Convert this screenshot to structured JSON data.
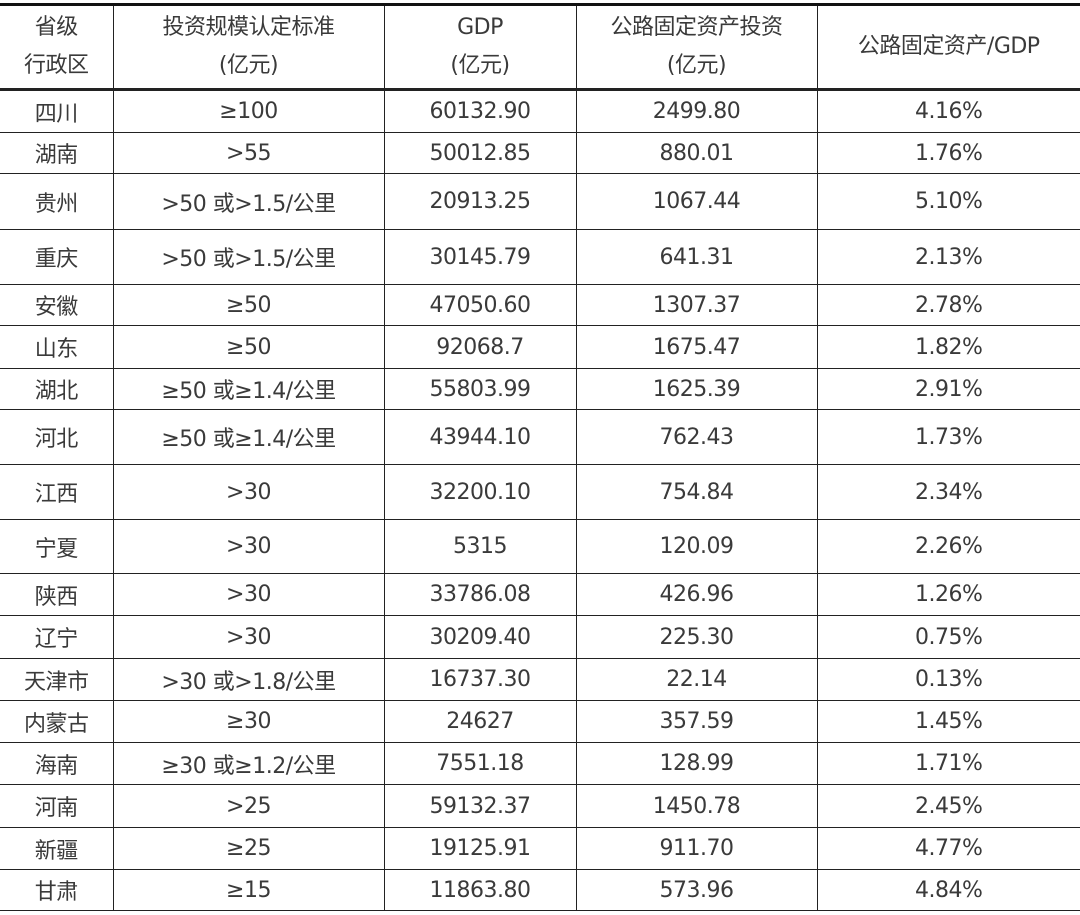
{
  "table": {
    "headers": [
      {
        "line1": "省级",
        "line2": "行政区"
      },
      {
        "line1": "投资规模认定标准",
        "line2": "(亿元)"
      },
      {
        "line1": "GDP",
        "line2": "(亿元)"
      },
      {
        "line1": "公路固定资产投资",
        "line2": "(亿元)"
      },
      {
        "line1": "公路固定资产/GDP",
        "line2": ""
      }
    ],
    "rows": [
      [
        "四川",
        "≥100",
        "60132.90",
        "2499.80",
        "4.16%"
      ],
      [
        "湖南",
        ">55",
        "50012.85",
        "880.01",
        "1.76%"
      ],
      [
        "贵州",
        ">50 或>1.5/公里",
        "20913.25",
        "1067.44",
        "5.10%"
      ],
      [
        "重庆",
        ">50 或>1.5/公里",
        "30145.79",
        "641.31",
        "2.13%"
      ],
      [
        "安徽",
        "≥50",
        "47050.60",
        "1307.37",
        "2.78%"
      ],
      [
        "山东",
        "≥50",
        "92068.7",
        "1675.47",
        "1.82%"
      ],
      [
        "湖北",
        "≥50 或≥1.4/公里",
        "55803.99",
        "1625.39",
        "2.91%"
      ],
      [
        "河北",
        "≥50 或≥1.4/公里",
        "43944.10",
        "762.43",
        "1.73%"
      ],
      [
        "江西",
        ">30",
        "32200.10",
        "754.84",
        "2.34%"
      ],
      [
        "宁夏",
        ">30",
        "5315",
        "120.09",
        "2.26%"
      ],
      [
        "陕西",
        ">30",
        "33786.08",
        "426.96",
        "1.26%"
      ],
      [
        "辽宁",
        ">30",
        "30209.40",
        "225.30",
        "0.75%"
      ],
      [
        "天津市",
        ">30 或>1.8/公里",
        "16737.30",
        "22.14",
        "0.13%"
      ],
      [
        "内蒙古",
        "≥30",
        "24627",
        "357.59",
        "1.45%"
      ],
      [
        "海南",
        "≥30 或≥1.2/公里",
        "7551.18",
        "128.99",
        "1.71%"
      ],
      [
        "河南",
        ">25",
        "59132.37",
        "1450.78",
        "2.45%"
      ],
      [
        "新疆",
        "≥25",
        "19125.91",
        "911.70",
        "4.77%"
      ],
      [
        "甘肃",
        "≥15",
        "11863.80",
        "573.96",
        "4.84%"
      ]
    ]
  }
}
